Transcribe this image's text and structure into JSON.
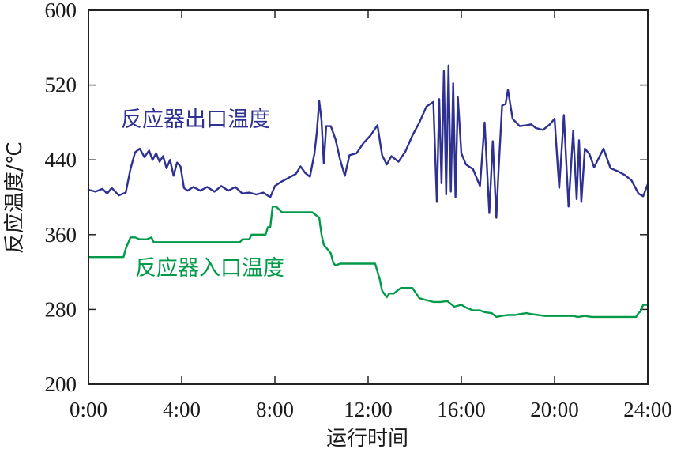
{
  "chart_data": {
    "type": "line",
    "xlabel": "运行时间",
    "ylabel": "反应温度/℃",
    "xlim": [
      0,
      24
    ],
    "ylim": [
      200,
      600
    ],
    "x_ticks": [
      0,
      4,
      8,
      12,
      16,
      20,
      24
    ],
    "x_tick_labels": [
      "0:00",
      "4:00",
      "8:00",
      "12:00",
      "16:00",
      "20:00",
      "24:00"
    ],
    "y_ticks": [
      200,
      280,
      360,
      440,
      520,
      600
    ],
    "y_tick_labels": [
      "200",
      "280",
      "360",
      "440",
      "520",
      "600"
    ],
    "grid": false,
    "legend": "inline labels",
    "series": [
      {
        "name": "反应器出口温度",
        "color": "#2e3192",
        "x": [
          0,
          0.3,
          0.6,
          0.8,
          1.0,
          1.3,
          1.6,
          1.8,
          2.0,
          2.2,
          2.4,
          2.6,
          2.75,
          2.9,
          3.05,
          3.2,
          3.35,
          3.5,
          3.65,
          3.8,
          3.95,
          4.1,
          4.25,
          4.5,
          4.8,
          5.1,
          5.4,
          5.7,
          6.0,
          6.3,
          6.6,
          6.9,
          7.2,
          7.5,
          7.8,
          8.0,
          8.3,
          8.6,
          8.9,
          9.1,
          9.3,
          9.5,
          9.7,
          9.8,
          9.9,
          10.0,
          10.1,
          10.2,
          10.4,
          10.6,
          10.8,
          11.0,
          11.2,
          11.5,
          11.8,
          12.1,
          12.4,
          12.6,
          12.8,
          13.0,
          13.3,
          13.6,
          13.9,
          14.2,
          14.5,
          14.8,
          14.95,
          15.05,
          15.15,
          15.25,
          15.35,
          15.45,
          15.55,
          15.65,
          15.75,
          15.85,
          16.0,
          16.2,
          16.5,
          16.8,
          17.0,
          17.2,
          17.35,
          17.5,
          17.6,
          17.75,
          17.9,
          18.0,
          18.2,
          18.5,
          18.8,
          19.0,
          19.2,
          19.5,
          19.8,
          20.0,
          20.2,
          20.4,
          20.6,
          20.8,
          20.95,
          21.05,
          21.15,
          21.3,
          21.5,
          21.7,
          21.9,
          22.1,
          22.4,
          22.7,
          23.0,
          23.3,
          23.6,
          23.8,
          24.0
        ],
        "values": [
          408,
          406,
          409,
          404,
          410,
          402,
          405,
          430,
          448,
          452,
          443,
          450,
          440,
          447,
          438,
          444,
          431,
          440,
          423,
          437,
          433,
          410,
          407,
          411,
          407,
          411,
          406,
          412,
          407,
          411,
          404,
          405,
          403,
          405,
          400,
          412,
          417,
          421,
          425,
          433,
          426,
          422,
          447,
          470,
          503,
          482,
          436,
          476,
          476,
          462,
          440,
          423,
          445,
          447,
          458,
          466,
          477,
          445,
          435,
          444,
          438,
          449,
          466,
          480,
          497,
          502,
          395,
          505,
          415,
          535,
          403,
          541,
          406,
          522,
          400,
          507,
          447,
          435,
          430,
          412,
          480,
          383,
          460,
          378,
          430,
          498,
          500,
          515,
          484,
          476,
          477,
          478,
          474,
          472,
          478,
          484,
          410,
          488,
          390,
          471,
          398,
          461,
          395,
          452,
          446,
          432,
          442,
          452,
          431,
          428,
          424,
          418,
          404,
          401,
          414
        ]
      },
      {
        "name": "反应器入口温度",
        "color": "#009a49",
        "x": [
          0,
          0.5,
          1.0,
          1.3,
          1.5,
          1.6,
          1.8,
          2.0,
          2.2,
          2.5,
          2.7,
          2.8,
          3.0,
          3.5,
          4.0,
          4.5,
          5.0,
          5.5,
          6.0,
          6.5,
          6.6,
          6.9,
          7.0,
          7.4,
          7.6,
          7.7,
          7.8,
          7.9,
          8.05,
          8.3,
          8.5,
          8.8,
          9.0,
          9.3,
          9.6,
          9.9,
          10.0,
          10.1,
          10.3,
          10.4,
          10.5,
          10.6,
          10.8,
          11.0,
          11.5,
          12.0,
          12.3,
          12.5,
          12.6,
          12.8,
          12.9,
          13.1,
          13.4,
          13.6,
          13.9,
          14.2,
          14.5,
          14.8,
          15.1,
          15.4,
          15.7,
          16.0,
          16.2,
          16.5,
          16.8,
          17.0,
          17.3,
          17.5,
          17.7,
          18.0,
          18.3,
          18.5,
          18.8,
          19.0,
          19.3,
          19.6,
          19.9,
          20.2,
          20.5,
          20.8,
          21.0,
          21.3,
          21.6,
          22.0,
          22.5,
          23.0,
          23.3,
          23.5,
          23.6,
          23.7,
          23.8,
          24.0
        ],
        "values": [
          336,
          336,
          336,
          336,
          336,
          345,
          357,
          357,
          355,
          355,
          357,
          352,
          352,
          352,
          352,
          352,
          352,
          352,
          352,
          352,
          355,
          355,
          360,
          360,
          360,
          368,
          368,
          390,
          390,
          384,
          384,
          384,
          384,
          384,
          384,
          378,
          360,
          349,
          343,
          340,
          330,
          327,
          329,
          329,
          329,
          329,
          329,
          312,
          300,
          293,
          297,
          297,
          303,
          303,
          303,
          292,
          290,
          288,
          288,
          289,
          283,
          285,
          282,
          279,
          279,
          277,
          276,
          272,
          273,
          274,
          274,
          275,
          276,
          275,
          274,
          273,
          273,
          273,
          273,
          273,
          272,
          273,
          272,
          272,
          272,
          272,
          272,
          272,
          276,
          278,
          285,
          285
        ]
      }
    ]
  }
}
